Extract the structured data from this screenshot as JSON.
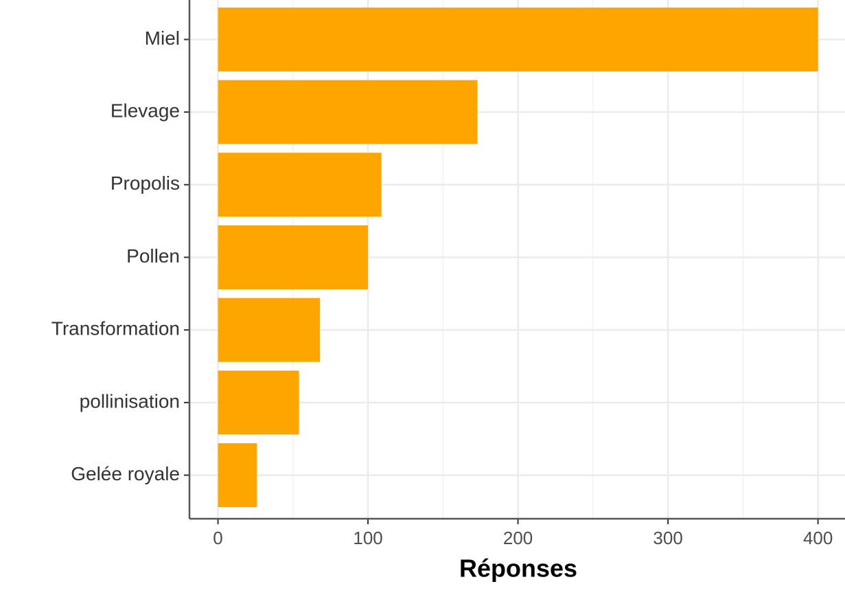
{
  "chart_data": {
    "type": "bar",
    "orientation": "horizontal",
    "x_label": "Réponses",
    "categories": [
      "Miel",
      "Elevage",
      "Propolis",
      "Pollen",
      "Transformation",
      "pollinisation",
      "Gelée royale"
    ],
    "values": [
      400,
      173,
      109,
      100,
      68,
      54,
      26
    ],
    "color": "#ffa500",
    "xlim": [
      -19,
      418
    ],
    "xticks": [
      0,
      100,
      200,
      300,
      400
    ],
    "minor_xticks": [
      50,
      150,
      250,
      350
    ],
    "grid": true
  }
}
